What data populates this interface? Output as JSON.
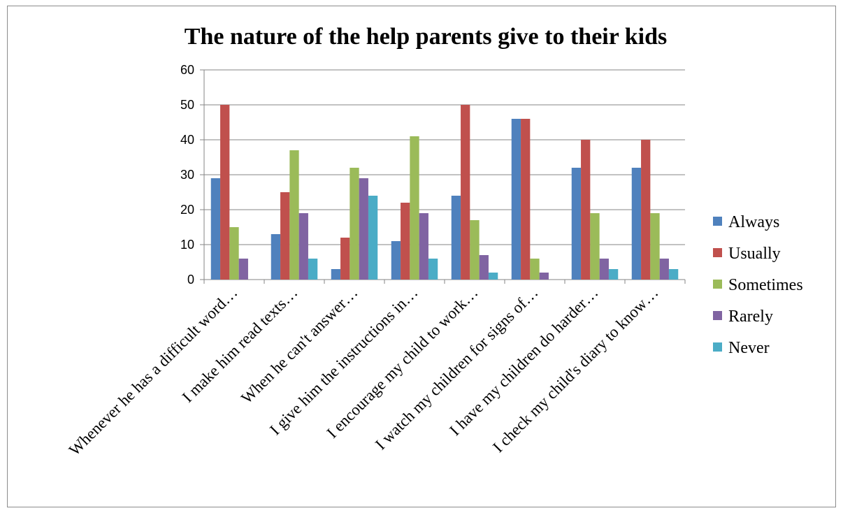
{
  "chart_data": {
    "type": "bar",
    "title": "The nature of the help parents  give to their kids",
    "xlabel": "",
    "ylabel": "",
    "ylim": [
      0,
      60
    ],
    "yticks": [
      0,
      10,
      20,
      30,
      40,
      50,
      60
    ],
    "grid": true,
    "legend_position": "right",
    "categories": [
      "Whenever he has a difficult word…",
      "I make him read texts…",
      "When he can't answer…",
      "I give him the instructions in…",
      "I encourage my child to work…",
      "I watch my children for signs of…",
      "I have my children do harder…",
      "I check my child's diary to know…"
    ],
    "series": [
      {
        "name": "Always",
        "color": "#4f81bd",
        "values": [
          29,
          13,
          3,
          11,
          24,
          46,
          32,
          32
        ]
      },
      {
        "name": "Usually",
        "color": "#c0504d",
        "values": [
          50,
          25,
          12,
          22,
          50,
          46,
          40,
          40
        ]
      },
      {
        "name": "Sometimes",
        "color": "#9bbb59",
        "values": [
          15,
          37,
          32,
          41,
          17,
          6,
          19,
          19
        ]
      },
      {
        "name": "Rarely",
        "color": "#8064a2",
        "values": [
          6,
          19,
          29,
          19,
          7,
          2,
          6,
          6
        ]
      },
      {
        "name": "Never",
        "color": "#4bacc6",
        "values": [
          0,
          6,
          24,
          6,
          2,
          0,
          3,
          3
        ]
      }
    ]
  }
}
